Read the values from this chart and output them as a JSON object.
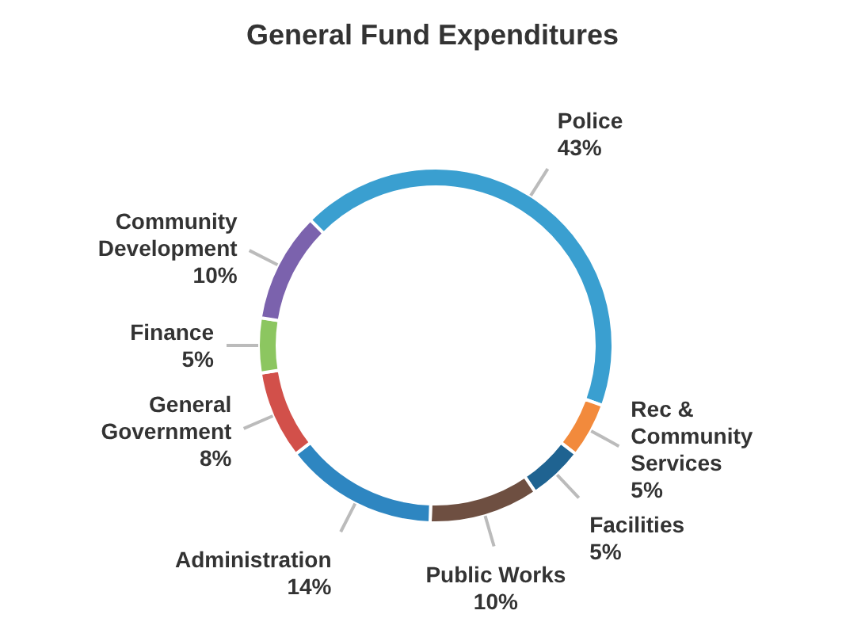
{
  "chart_data": {
    "type": "donut",
    "title": "General Fund Expenditures",
    "categories": [
      "Police",
      "Rec & Community Services",
      "Facilities",
      "Public Works",
      "Administration",
      "General Government",
      "Finance",
      "Community Development"
    ],
    "values": [
      43,
      5,
      5,
      10,
      14,
      8,
      5,
      10
    ],
    "value_labels": [
      "43%",
      "5%",
      "5%",
      "10%",
      "14%",
      "8%",
      "5%",
      "10%"
    ],
    "colors": [
      "#3a9fd0",
      "#f28a3c",
      "#1f6391",
      "#6e4f41",
      "#2e86c1",
      "#d2504a",
      "#8cc660",
      "#7b62ad"
    ],
    "legend": false
  }
}
